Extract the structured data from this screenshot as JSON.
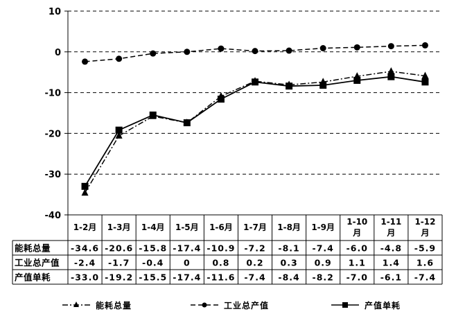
{
  "chart_data": {
    "type": "line",
    "categories": [
      "1-2月",
      "1-3月",
      "1-4月",
      "1-5月",
      "1-6月",
      "1-7月",
      "1-8月",
      "1-9月",
      "1-10月",
      "1-11月",
      "1-12月"
    ],
    "category_labels": [
      [
        "1-2月"
      ],
      [
        "1-3月"
      ],
      [
        "1-4月"
      ],
      [
        "1-5月"
      ],
      [
        "1-6月"
      ],
      [
        "1-7月"
      ],
      [
        "1-8月"
      ],
      [
        "1-9月"
      ],
      [
        "1-10",
        "月"
      ],
      [
        "1-11",
        "月"
      ],
      [
        "1-12",
        "月"
      ]
    ],
    "ylim": [
      -40,
      10
    ],
    "yticks": [
      -40,
      -30,
      -20,
      -10,
      0,
      10
    ],
    "ytick_labels": [
      "-40",
      "-30",
      "-20",
      "-10",
      "0",
      "10"
    ],
    "grid": "horizontal-dashed",
    "legend_position": "bottom",
    "series": [
      {
        "name": "能耗总量",
        "marker": "triangle",
        "line_style": "dash-dot",
        "values": [
          -34.6,
          -20.6,
          -15.8,
          -17.4,
          -10.9,
          -7.2,
          -8.1,
          -7.4,
          -6.0,
          -4.8,
          -5.9
        ],
        "value_labels": [
          "-34.6",
          "-20.6",
          "-15.8",
          "-17.4",
          "-10.9",
          "-7.2",
          "-8.1",
          "-7.4",
          "-6.0",
          "-4.8",
          "-5.9"
        ]
      },
      {
        "name": "工业总产值",
        "marker": "circle",
        "line_style": "dashed",
        "values": [
          -2.4,
          -1.7,
          -0.4,
          0,
          0.8,
          0.2,
          0.3,
          0.9,
          1.1,
          1.4,
          1.6
        ],
        "value_labels": [
          "-2.4",
          "-1.7",
          "-0.4",
          "0",
          "0.8",
          "0.2",
          "0.3",
          "0.9",
          "1.1",
          "1.4",
          "1.6"
        ]
      },
      {
        "name": "产值单耗",
        "marker": "square",
        "line_style": "solid",
        "values": [
          -33.0,
          -19.2,
          -15.5,
          -17.4,
          -11.6,
          -7.4,
          -8.4,
          -8.2,
          -7.0,
          -6.1,
          -7.4
        ],
        "value_labels": [
          "-33.0",
          "-19.2",
          "-15.5",
          "-17.4",
          "-11.6",
          "-7.4",
          "-8.4",
          "-8.2",
          "-7.0",
          "-6.1",
          "-7.4"
        ]
      }
    ],
    "colors": {
      "line": "#000000",
      "background": "#ffffff"
    }
  }
}
